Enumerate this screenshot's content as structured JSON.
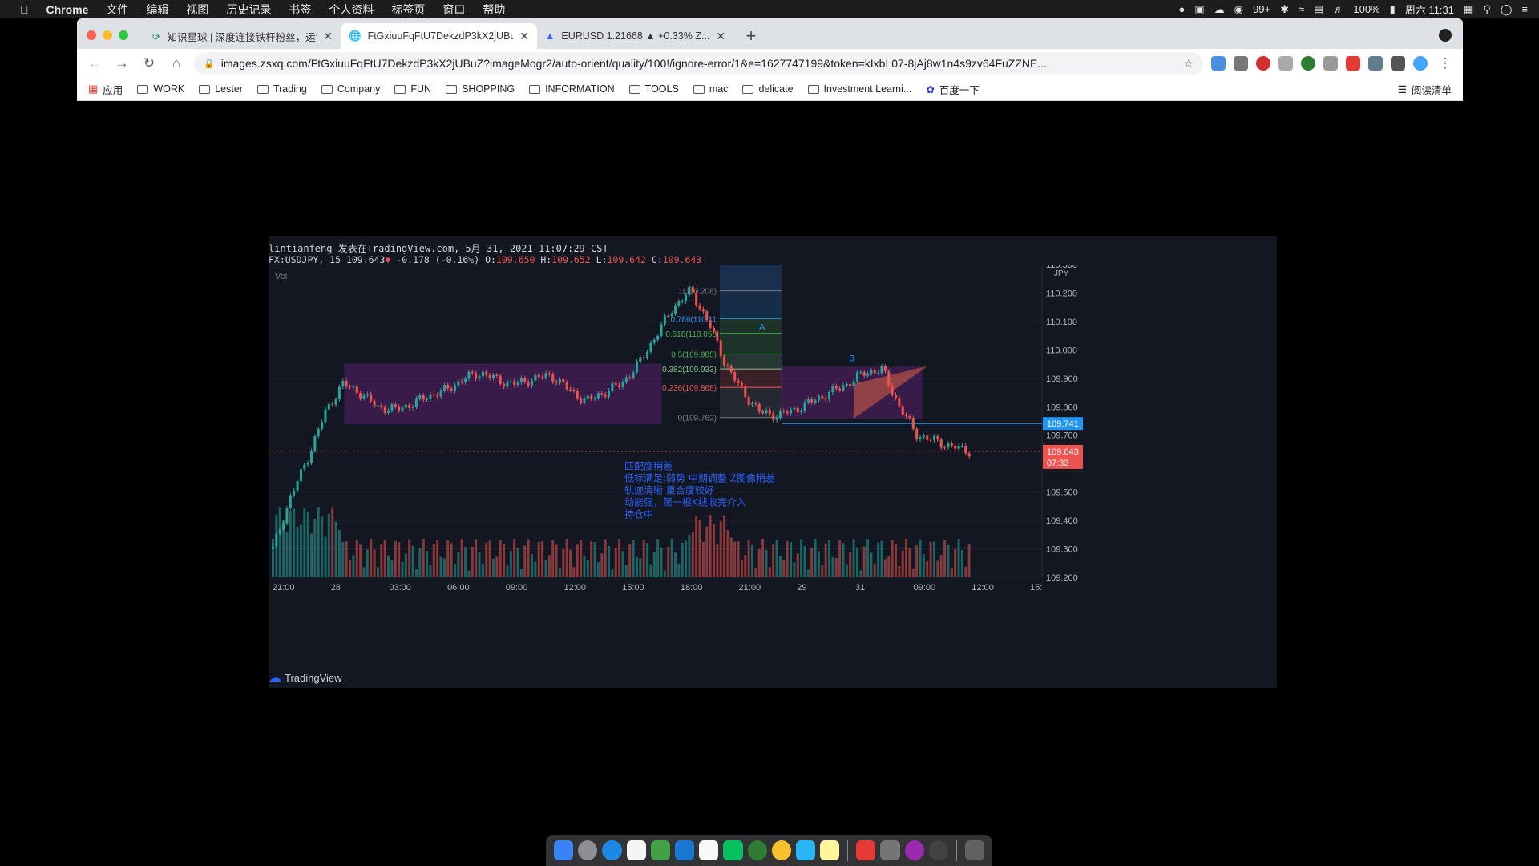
{
  "menubar": {
    "app": "Chrome",
    "items": [
      "文件",
      "编辑",
      "视图",
      "历史记录",
      "书签",
      "个人资料",
      "标签页",
      "窗口",
      "帮助"
    ],
    "notifications": "99+",
    "battery": "100%",
    "datetime": "周六 11:31"
  },
  "tabs": [
    {
      "title": "知识星球 | 深度连接铁杆粉丝，运营..."
    },
    {
      "title": "FtGxiuuFqFtU7DekzdP3kX2jUBuZ..."
    },
    {
      "title": "EURUSD 1.21668 ▲ +0.33% Z..."
    }
  ],
  "address": {
    "url": "images.zsxq.com/FtGxiuuFqFtU7DekzdP3kX2jUBuZ?imageMogr2/auto-orient/quality/100!/ignore-error/1&e=1627747199&token=kIxbL07-8jAj8w1n4s9zv64FuZZNE..."
  },
  "bookmarks": {
    "apps": "应用",
    "folders": [
      "WORK",
      "Lester",
      "Trading",
      "Company",
      "FUN",
      "SHOPPING",
      "INFORMATION",
      "TOOLS",
      "mac",
      "delicate",
      "Investment Learni..."
    ],
    "baidu": "百度一下",
    "reading_list": "阅读清单"
  },
  "chart_header": {
    "line1": "lintianfeng 发表在TradingView.com, 5月 31, 2021 11:07:29 CST",
    "symbol": "FX:USDJPY, 15",
    "price": "109.643",
    "change": "-0.178 (-0.16%)",
    "o_label": "O:",
    "o": "109.650",
    "h_label": "H:",
    "h": "109.652",
    "l_label": "L:",
    "l": "109.642",
    "c_label": "C:",
    "c": "109.643"
  },
  "chart_data": {
    "type": "candlestick",
    "symbol": "FX:USDJPY",
    "interval": "15",
    "currency": "JPY",
    "volume_label": "Vol",
    "ylim": [
      109.2,
      110.3
    ],
    "y_ticks": [
      "110.300",
      "110.200",
      "110.100",
      "110.000",
      "109.900",
      "109.800",
      "109.700",
      "109.500",
      "109.400",
      "109.300",
      "109.200"
    ],
    "x_ticks": [
      "21:00",
      "28",
      "03:00",
      "06:00",
      "09:00",
      "12:00",
      "15:00",
      "18:00",
      "21:00",
      "29",
      "31",
      "09:00",
      "12:00",
      "15:"
    ],
    "price_path": [
      109.3,
      109.48,
      109.62,
      109.78,
      109.88,
      109.85,
      109.8,
      109.79,
      109.81,
      109.84,
      109.86,
      109.9,
      109.92,
      109.89,
      109.88,
      109.9,
      109.91,
      109.86,
      109.82,
      109.85,
      109.88,
      109.95,
      110.05,
      110.15,
      110.208,
      110.1,
      109.95,
      109.85,
      109.78,
      109.77,
      109.79,
      109.82,
      109.85,
      109.88,
      109.92,
      109.93,
      109.8,
      109.7,
      109.68,
      109.66,
      109.643
    ],
    "fib_levels": [
      {
        "ratio": "1(110.208)"
      },
      {
        "ratio": "0.786(110.11"
      },
      {
        "ratio": "0.618(110.058"
      },
      {
        "ratio": "0.5(109.985)"
      },
      {
        "ratio": "0.382(109.933)"
      },
      {
        "ratio": "0.236(109.868)"
      },
      {
        "ratio": "0(109.762)"
      }
    ],
    "pattern_labels": [
      "A",
      "B"
    ],
    "price_label_blue": "109.741",
    "price_label_red": "109.643",
    "countdown": "07:33",
    "annotation": [
      "匹配度稍差",
      "低标满足:弱势  中期调整  Z图像稍差",
      "轨迹清晰 重合度较好",
      "动能强，第一根K线收完介入",
      "持仓中"
    ],
    "colors": {
      "up": "#26a69a",
      "down": "#ef5350",
      "box": "#9c27b0",
      "blue": "#2196f3"
    }
  },
  "tradingview_brand": "TradingView"
}
